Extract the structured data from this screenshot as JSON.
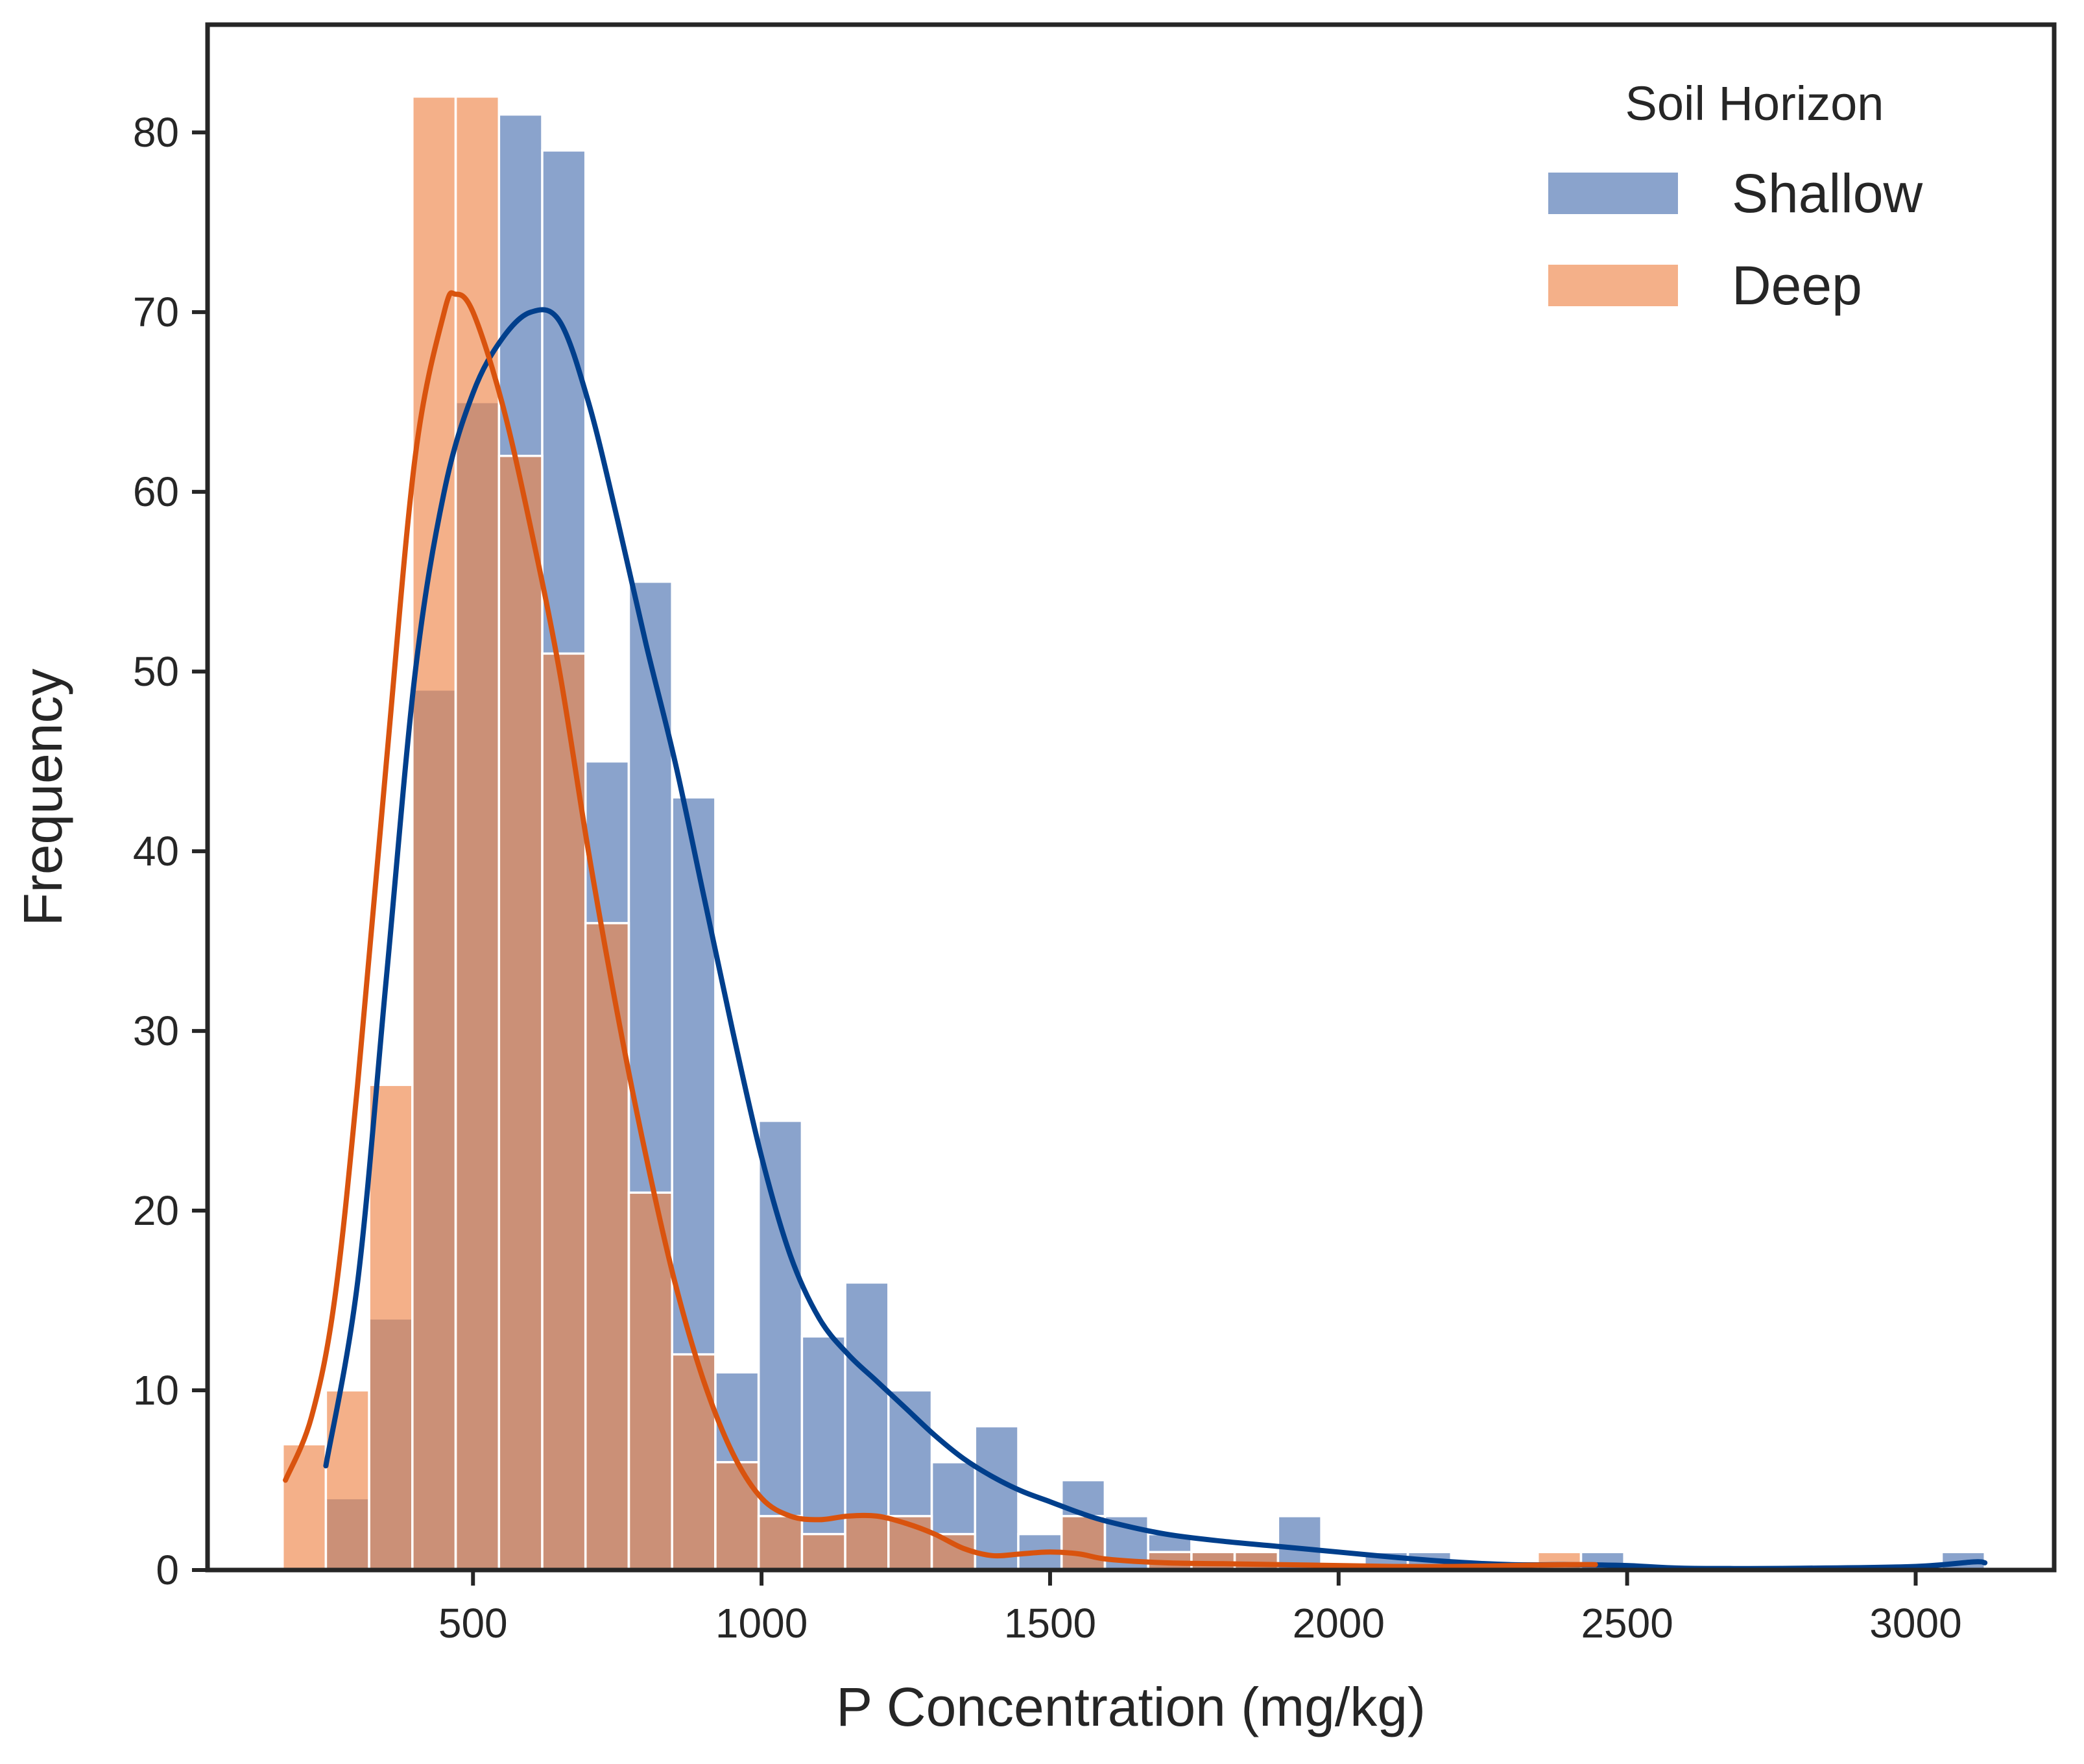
{
  "chart_data": {
    "type": "histogram",
    "xlabel": "P Concentration (mg/kg)",
    "ylabel": "Frequency",
    "xlim": [
      40,
      3240
    ],
    "ylim": [
      0,
      86
    ],
    "xticks": [
      500,
      1000,
      1500,
      2000,
      2500,
      3000
    ],
    "yticks": [
      0,
      10,
      20,
      30,
      40,
      50,
      60,
      70,
      80
    ],
    "grid": false,
    "legend": {
      "title": "Soil Horizon",
      "position": "top-right"
    },
    "colors": {
      "shallow_bar": "#4c72b0",
      "deep_bar": "#ee854a",
      "shallow_kde": "#003f8c",
      "deep_kde": "#d9530e",
      "axis": "#262626"
    },
    "series": [
      {
        "name": "Shallow",
        "bin_width": 75,
        "bins": [
          {
            "x0": 245,
            "count": 4
          },
          {
            "x0": 320,
            "count": 14
          },
          {
            "x0": 395,
            "count": 49
          },
          {
            "x0": 470,
            "count": 65
          },
          {
            "x0": 545,
            "count": 81
          },
          {
            "x0": 620,
            "count": 79
          },
          {
            "x0": 695,
            "count": 45
          },
          {
            "x0": 770,
            "count": 55
          },
          {
            "x0": 845,
            "count": 43
          },
          {
            "x0": 920,
            "count": 11
          },
          {
            "x0": 995,
            "count": 25
          },
          {
            "x0": 1070,
            "count": 13
          },
          {
            "x0": 1145,
            "count": 16
          },
          {
            "x0": 1220,
            "count": 10
          },
          {
            "x0": 1295,
            "count": 6
          },
          {
            "x0": 1370,
            "count": 8
          },
          {
            "x0": 1445,
            "count": 2
          },
          {
            "x0": 1520,
            "count": 5
          },
          {
            "x0": 1595,
            "count": 3
          },
          {
            "x0": 1670,
            "count": 2
          },
          {
            "x0": 1745,
            "count": 1
          },
          {
            "x0": 1820,
            "count": 1
          },
          {
            "x0": 1895,
            "count": 3
          },
          {
            "x0": 1970,
            "count": 0
          },
          {
            "x0": 2045,
            "count": 1
          },
          {
            "x0": 2120,
            "count": 1
          },
          {
            "x0": 2195,
            "count": 0
          },
          {
            "x0": 2270,
            "count": 0
          },
          {
            "x0": 2345,
            "count": 0
          },
          {
            "x0": 2420,
            "count": 1
          },
          {
            "x0": 3045,
            "count": 1
          }
        ],
        "kde": [
          [
            245,
            5.8
          ],
          [
            300,
            16
          ],
          [
            350,
            33
          ],
          [
            400,
            50
          ],
          [
            450,
            60
          ],
          [
            500,
            65.5
          ],
          [
            550,
            68.5
          ],
          [
            600,
            70
          ],
          [
            650,
            69.5
          ],
          [
            700,
            65
          ],
          [
            750,
            58.5
          ],
          [
            800,
            51.5
          ],
          [
            850,
            45
          ],
          [
            900,
            37.5
          ],
          [
            950,
            30
          ],
          [
            1000,
            23
          ],
          [
            1050,
            17.5
          ],
          [
            1100,
            14
          ],
          [
            1150,
            12
          ],
          [
            1200,
            10.5
          ],
          [
            1250,
            9
          ],
          [
            1300,
            7.5
          ],
          [
            1350,
            6.2
          ],
          [
            1400,
            5.2
          ],
          [
            1450,
            4.4
          ],
          [
            1500,
            3.8
          ],
          [
            1550,
            3.2
          ],
          [
            1600,
            2.7
          ],
          [
            1700,
            2
          ],
          [
            1800,
            1.6
          ],
          [
            1900,
            1.3
          ],
          [
            2000,
            1
          ],
          [
            2100,
            0.7
          ],
          [
            2200,
            0.45
          ],
          [
            2300,
            0.3
          ],
          [
            2400,
            0.3
          ],
          [
            2500,
            0.25
          ],
          [
            2600,
            0.1
          ],
          [
            2800,
            0.1
          ],
          [
            3000,
            0.2
          ],
          [
            3100,
            0.45
          ],
          [
            3120,
            0.4
          ]
        ]
      },
      {
        "name": "Deep",
        "bin_width": 75,
        "bins": [
          {
            "x0": 170,
            "count": 7
          },
          {
            "x0": 245,
            "count": 10
          },
          {
            "x0": 320,
            "count": 27
          },
          {
            "x0": 395,
            "count": 82
          },
          {
            "x0": 470,
            "count": 82
          },
          {
            "x0": 545,
            "count": 62
          },
          {
            "x0": 620,
            "count": 51
          },
          {
            "x0": 695,
            "count": 36
          },
          {
            "x0": 770,
            "count": 21
          },
          {
            "x0": 845,
            "count": 12
          },
          {
            "x0": 920,
            "count": 6
          },
          {
            "x0": 995,
            "count": 3
          },
          {
            "x0": 1070,
            "count": 2
          },
          {
            "x0": 1145,
            "count": 3
          },
          {
            "x0": 1220,
            "count": 3
          },
          {
            "x0": 1295,
            "count": 2
          },
          {
            "x0": 1370,
            "count": 0
          },
          {
            "x0": 1445,
            "count": 0
          },
          {
            "x0": 1520,
            "count": 3
          },
          {
            "x0": 1595,
            "count": 0
          },
          {
            "x0": 1670,
            "count": 1
          },
          {
            "x0": 1745,
            "count": 1
          },
          {
            "x0": 1820,
            "count": 1
          },
          {
            "x0": 1895,
            "count": 0
          },
          {
            "x0": 2345,
            "count": 1
          }
        ],
        "kde": [
          [
            175,
            5
          ],
          [
            220,
            8.5
          ],
          [
            260,
            15
          ],
          [
            300,
            27
          ],
          [
            350,
            45
          ],
          [
            400,
            62
          ],
          [
            450,
            70
          ],
          [
            470,
            71
          ],
          [
            500,
            70
          ],
          [
            550,
            65
          ],
          [
            600,
            58
          ],
          [
            650,
            50
          ],
          [
            700,
            40
          ],
          [
            750,
            31
          ],
          [
            800,
            23
          ],
          [
            850,
            16
          ],
          [
            900,
            10.5
          ],
          [
            950,
            6.5
          ],
          [
            1000,
            4
          ],
          [
            1050,
            3
          ],
          [
            1100,
            2.8
          ],
          [
            1150,
            3
          ],
          [
            1200,
            3
          ],
          [
            1250,
            2.6
          ],
          [
            1300,
            2
          ],
          [
            1350,
            1.2
          ],
          [
            1400,
            0.8
          ],
          [
            1450,
            0.9
          ],
          [
            1500,
            1
          ],
          [
            1550,
            0.9
          ],
          [
            1600,
            0.6
          ],
          [
            1700,
            0.4
          ],
          [
            1800,
            0.35
          ],
          [
            1900,
            0.3
          ],
          [
            2000,
            0.25
          ],
          [
            2100,
            0.2
          ],
          [
            2200,
            0.2
          ],
          [
            2300,
            0.25
          ],
          [
            2400,
            0.3
          ],
          [
            2445,
            0.3
          ]
        ]
      }
    ]
  }
}
